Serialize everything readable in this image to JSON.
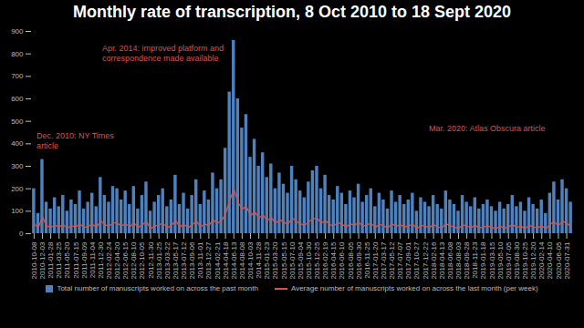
{
  "chart_data": {
    "type": "bar",
    "title": "Monthly rate of transcription, 8 Oct 2010 to 18 Sept 2020",
    "categories": [
      "2010-10-08",
      null,
      "2010-12-03",
      null,
      "2011-01-28",
      null,
      "2011-03-25",
      null,
      "2011-05-20",
      null,
      "2011-07-15",
      null,
      "2011-09-09",
      null,
      "2011-11-04",
      null,
      "2011-12-30",
      null,
      "2012-02-24",
      null,
      "2012-04-20",
      null,
      "2012-06-15",
      null,
      "2012-08-10",
      null,
      "2012-10-05",
      null,
      "2012-11-30",
      null,
      "2013-01-25",
      null,
      "2013-03-22",
      null,
      "2013-05-17",
      null,
      "2013-07-12",
      null,
      "2013-09-06",
      null,
      "2013-11-01",
      null,
      "2013-12-27",
      null,
      "2014-02-21",
      null,
      "2014-04-18",
      null,
      "2014-06-13",
      null,
      "2014-08-08",
      null,
      "2014-10-03",
      null,
      "2014-11-28",
      null,
      "2015-01-23",
      null,
      "2015-03-20",
      null,
      "2015-05-15",
      null,
      "2015-07-10",
      null,
      "2015-09-04",
      null,
      "2015-10-30",
      null,
      "2015-12-25",
      null,
      "2016-02-19",
      null,
      "2016-04-15",
      null,
      "2016-06-10",
      null,
      "2016-08-05",
      null,
      "2016-09-30",
      null,
      "2016-11-25",
      null,
      "2017-01-20",
      null,
      "2017-03-17",
      null,
      "2017-05-12",
      null,
      "2017-07-07",
      null,
      "2017-09-01",
      null,
      "2017-10-27",
      null,
      "2017-12-22",
      null,
      "2018-02-16",
      null,
      "2018-04-13",
      null,
      "2018-06-08",
      null,
      "2018-08-03",
      null,
      "2018-09-28",
      null,
      "2018-11-23",
      null,
      "2019-01-18",
      null,
      "2019-03-15",
      null,
      "2019-05-10",
      null,
      "2019-07-05",
      null,
      "2019-08-30",
      null,
      "2019-10-25",
      null,
      "2019-12-20",
      null,
      "2020-02-14",
      null,
      "2020-04-10",
      null,
      "2020-06-05",
      null,
      "2020-07-31",
      null
    ],
    "series": [
      {
        "name": "Total number of manuscripts worked on across the past month",
        "type": "bar",
        "color": "#4f81bd",
        "values": [
          200,
          90,
          330,
          140,
          110,
          160,
          120,
          170,
          100,
          150,
          130,
          190,
          110,
          140,
          180,
          120,
          250,
          170,
          140,
          210,
          200,
          150,
          190,
          130,
          210,
          110,
          170,
          230,
          100,
          140,
          170,
          200,
          120,
          150,
          260,
          130,
          180,
          110,
          170,
          240,
          130,
          190,
          150,
          270,
          200,
          240,
          380,
          630,
          860,
          600,
          470,
          530,
          340,
          420,
          300,
          360,
          250,
          310,
          200,
          270,
          220,
          180,
          300,
          240,
          190,
          160,
          230,
          280,
          300,
          200,
          260,
          170,
          150,
          210,
          180,
          130,
          190,
          160,
          220,
          140,
          170,
          200,
          120,
          180,
          150,
          110,
          190,
          140,
          170,
          130,
          150,
          180,
          100,
          160,
          140,
          120,
          170,
          130,
          110,
          190,
          150,
          130,
          100,
          170,
          140,
          120,
          160,
          110,
          130,
          150,
          120,
          100,
          140,
          110,
          130,
          170,
          120,
          140,
          100,
          160,
          130,
          110,
          150,
          90,
          180,
          230,
          150,
          240,
          200,
          140
        ]
      },
      {
        "name": "Average number of manuscripts worked on across the last month (per week)",
        "type": "line",
        "color": "#d9534f",
        "values": [
          45,
          25,
          75,
          35,
          28,
          38,
          30,
          40,
          25,
          35,
          30,
          44,
          27,
          33,
          42,
          28,
          58,
          40,
          33,
          49,
          46,
          35,
          44,
          30,
          49,
          27,
          40,
          53,
          24,
          33,
          40,
          46,
          28,
          35,
          60,
          30,
          42,
          26,
          40,
          56,
          30,
          44,
          35,
          63,
          46,
          56,
          88,
          146,
          200,
          140,
          109,
          123,
          79,
          98,
          70,
          84,
          58,
          72,
          46,
          63,
          51,
          42,
          70,
          56,
          44,
          37,
          53,
          65,
          70,
          46,
          60,
          40,
          35,
          49,
          42,
          30,
          44,
          37,
          51,
          33,
          40,
          46,
          28,
          42,
          35,
          26,
          44,
          33,
          40,
          30,
          35,
          42,
          23,
          37,
          33,
          28,
          40,
          30,
          26,
          44,
          35,
          30,
          23,
          40,
          33,
          28,
          37,
          26,
          30,
          35,
          28,
          23,
          33,
          26,
          30,
          40,
          28,
          33,
          23,
          37,
          30,
          26,
          35,
          21,
          42,
          53,
          35,
          56,
          46,
          33
        ]
      }
    ],
    "ylim": [
      0,
      900
    ],
    "yticks": [
      0,
      100,
      200,
      300,
      400,
      500,
      600,
      700,
      800,
      900
    ],
    "grid": false,
    "annotations": [
      {
        "text": "Dec. 2010: NY Times article"
      },
      {
        "text": "Apr. 2014: improved platform and correspondence made available"
      },
      {
        "text": "Mar. 2020: Atlas Obscura article"
      }
    ]
  }
}
